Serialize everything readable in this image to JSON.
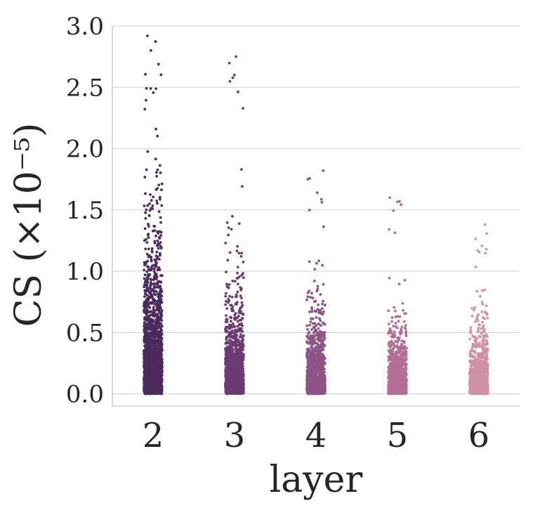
{
  "chart_data": {
    "type": "strip",
    "title": "",
    "xlabel": "layer",
    "ylabel": "CS (×10⁻⁵)",
    "ylim": [
      -0.1,
      3.0
    ],
    "yticks": [
      "0.0",
      "0.5",
      "1.0",
      "1.5",
      "2.0",
      "2.5",
      "3.0"
    ],
    "ytick_values": [
      0.0,
      0.5,
      1.0,
      1.5,
      2.0,
      2.5,
      3.0
    ],
    "grid": true,
    "categories": [
      "2",
      "3",
      "4",
      "5",
      "6"
    ],
    "series": [
      {
        "category": "2",
        "color": "#4b2a5e",
        "n_points": 2000,
        "max": 2.92,
        "median": 0.25,
        "approx_upper_quartile": 0.7
      },
      {
        "category": "3",
        "color": "#6b3b72",
        "n_points": 1500,
        "max": 2.75,
        "median": 0.15,
        "approx_upper_quartile": 0.45
      },
      {
        "category": "4",
        "color": "#8f5385",
        "n_points": 1300,
        "max": 1.82,
        "median": 0.12,
        "approx_upper_quartile": 0.35
      },
      {
        "category": "5",
        "color": "#b36f93",
        "n_points": 1200,
        "max": 1.6,
        "median": 0.1,
        "approx_upper_quartile": 0.3
      },
      {
        "category": "6",
        "color": "#d191a4",
        "n_points": 1200,
        "max": 1.38,
        "median": 0.1,
        "approx_upper_quartile": 0.3
      }
    ]
  }
}
